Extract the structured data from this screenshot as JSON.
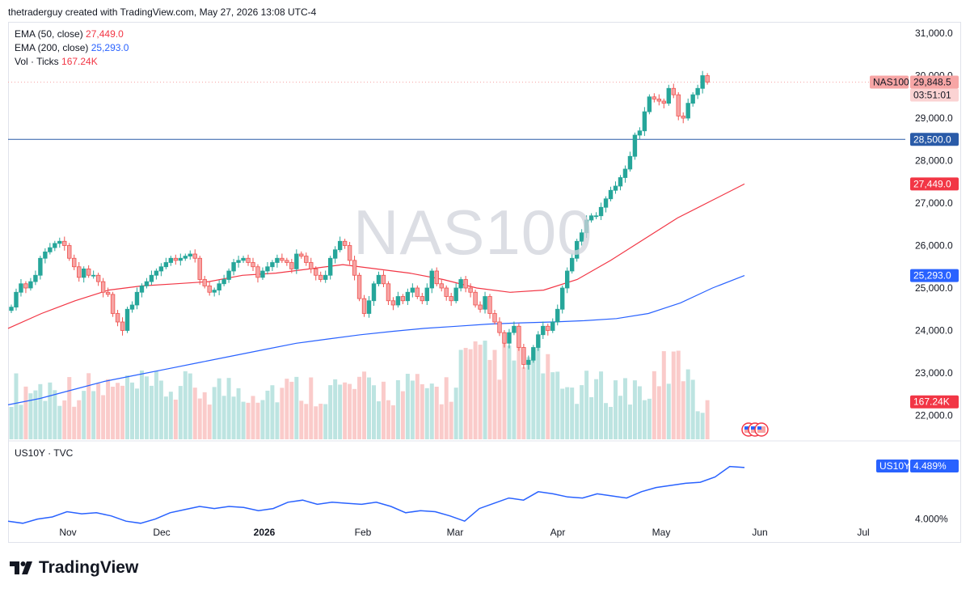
{
  "header": {
    "attribution": "thetraderguy created with TradingView.com, May 27, 2026 13:08 UTC-4"
  },
  "watermark": "NAS100",
  "brand": {
    "name": "TradingView"
  },
  "colors": {
    "up": "#26a69a",
    "down": "#ef5350",
    "ema50": "#f23645",
    "ema200": "#2962ff",
    "hline": "#2a5ba8",
    "us10y": "#2962ff"
  },
  "legend": {
    "ema50": {
      "label": "EMA (50, close)",
      "value": "27,449.0"
    },
    "ema200": {
      "label": "EMA (200, close)",
      "value": "25,293.0"
    },
    "vol": {
      "label": "Vol · Ticks",
      "value": "167.24K"
    }
  },
  "pane2": {
    "label": "US10Y · TVC"
  },
  "chart_data": {
    "type": "candlestick",
    "symbol": "NAS100",
    "y_ticks": [
      "31,000.0",
      "30,000.0",
      "29,000.0",
      "28,000.0",
      "27,000.0",
      "26,000.0",
      "25,000.0",
      "24,000.0",
      "23,000.0",
      "22,000.0"
    ],
    "ylim": [
      21450,
      31350
    ],
    "x_labels": [
      "Nov",
      "Dec",
      "2026",
      "Feb",
      "Mar",
      "Apr",
      "May",
      "Jun",
      "Jul"
    ],
    "price_badges": [
      {
        "label": "NAS100",
        "value": "29,848.5",
        "sub": "03:51:01",
        "price": 29848.5,
        "color": "#f7a5a5"
      },
      {
        "label": "",
        "value": "28,500.0",
        "price": 28500,
        "color": "#2a5ba8"
      },
      {
        "label": "",
        "value": "27,449.0",
        "price": 27449,
        "color": "#f23645"
      },
      {
        "label": "",
        "value": "25,293.0",
        "price": 25293,
        "color": "#2962ff"
      },
      {
        "label": "",
        "value": "167.24K",
        "price": 22320,
        "color": "#f23645"
      }
    ],
    "horizontal_line": 28500,
    "close_approx": [
      24550,
      24900,
      25100,
      25000,
      25150,
      25300,
      25700,
      25850,
      25950,
      26050,
      26100,
      26000,
      25700,
      25500,
      25250,
      25450,
      25300,
      25300,
      25150,
      24900,
      24850,
      24400,
      24200,
      24000,
      24500,
      24600,
      24900,
      25050,
      25150,
      25300,
      25400,
      25500,
      25600,
      25700,
      25650,
      25700,
      25750,
      25800,
      25700,
      25200,
      25050,
      24900,
      24950,
      25100,
      25200,
      25400,
      25600,
      25650,
      25700,
      25600,
      25500,
      25250,
      25400,
      25500,
      25600,
      25700,
      25650,
      25600,
      25450,
      25800,
      25750,
      25600,
      25450,
      25300,
      25200,
      25300,
      25700,
      25900,
      26100,
      26000,
      25650,
      25300,
      24750,
      24400,
      24700,
      25100,
      25300,
      25100,
      24700,
      24600,
      24800,
      24700,
      24900,
      25000,
      24800,
      24700,
      25000,
      25400,
      25100,
      25000,
      24800,
      24700,
      25000,
      25200,
      25000,
      24900,
      24600,
      24500,
      24800,
      24400,
      24200,
      23950,
      23700,
      23950,
      24100,
      23600,
      23200,
      23300,
      23600,
      23900,
      24100,
      24000,
      24200,
      24500,
      25000,
      25400,
      25700,
      26100,
      26300,
      26600,
      26700,
      26700,
      26900,
      27100,
      27300,
      27400,
      27600,
      27800,
      28100,
      28600,
      28700,
      29150,
      29500,
      29450,
      29400,
      29350,
      29700,
      29550,
      29050,
      29000,
      29350,
      29550,
      29700,
      30000,
      29848.5
    ],
    "us10y_value": "4.489%",
    "us10y_tick": "4.000%",
    "us10y_ylim": [
      3.85,
      4.62
    ]
  }
}
